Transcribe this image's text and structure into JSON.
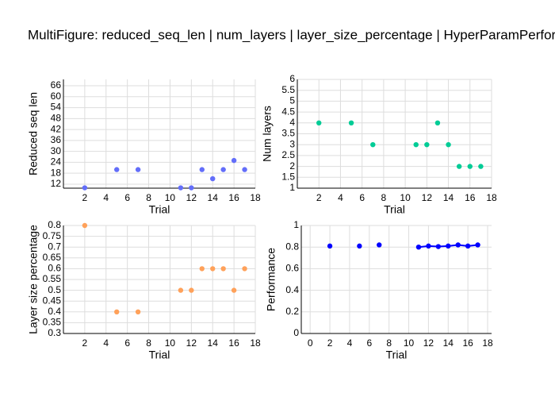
{
  "title": "MultiFigure: reduced_seq_len | num_layers | layer_size_percentage | HyperParamPerformance",
  "chart_data": [
    {
      "type": "scatter",
      "xlabel": "Trial",
      "ylabel": "Reduced seq len",
      "xlim": [
        0,
        18
      ],
      "xticks": [
        2,
        4,
        6,
        8,
        10,
        12,
        14,
        16,
        18
      ],
      "ylim": [
        9.8,
        69.5
      ],
      "yticks": [
        12,
        18,
        24,
        30,
        36,
        42,
        48,
        54,
        60,
        66
      ],
      "grid": true,
      "series": [
        {
          "mode": "markers",
          "color": "#636efa",
          "x": [
            2,
            5,
            7,
            11,
            12,
            13,
            14,
            15,
            16,
            17
          ],
          "values": [
            10,
            20,
            20,
            10,
            10,
            20,
            15,
            20,
            25,
            20
          ]
        }
      ]
    },
    {
      "type": "scatter",
      "xlabel": "Trial",
      "ylabel": "Num layers",
      "xlim": [
        0,
        18
      ],
      "xticks": [
        2,
        4,
        6,
        8,
        10,
        12,
        14,
        16,
        18
      ],
      "ylim": [
        1,
        6
      ],
      "yticks": [
        1,
        1.5,
        2,
        2.5,
        3,
        3.5,
        4,
        4.5,
        5,
        5.5,
        6
      ],
      "grid": true,
      "series": [
        {
          "mode": "markers",
          "color": "#00cc96",
          "x": [
            2,
            5,
            7,
            11,
            12,
            13,
            14,
            15,
            16,
            17
          ],
          "values": [
            4,
            4,
            3,
            3,
            3,
            4,
            3,
            2,
            2,
            2
          ]
        }
      ]
    },
    {
      "type": "scatter",
      "xlabel": "Trial",
      "ylabel": "Layer size percentage",
      "xlim": [
        0,
        18
      ],
      "xticks": [
        2,
        4,
        6,
        8,
        10,
        12,
        14,
        16,
        18
      ],
      "ylim": [
        0.3,
        0.8
      ],
      "yticks": [
        0.3,
        0.35,
        0.4,
        0.45,
        0.5,
        0.55,
        0.6,
        0.65,
        0.7,
        0.75,
        0.8
      ],
      "grid": true,
      "series": [
        {
          "mode": "markers",
          "color": "#ffa15a",
          "x": [
            2,
            5,
            7,
            11,
            12,
            13,
            14,
            15,
            16,
            17
          ],
          "values": [
            0.8,
            0.4,
            0.4,
            0.5,
            0.5,
            0.6,
            0.6,
            0.6,
            0.5,
            0.6
          ]
        }
      ]
    },
    {
      "type": "scatter",
      "xlabel": "Trial",
      "ylabel": "Performance",
      "xlim": [
        -0.9,
        18.4
      ],
      "xticks": [
        0,
        2,
        4,
        6,
        8,
        10,
        12,
        14,
        16,
        18
      ],
      "ylim": [
        0,
        1
      ],
      "yticks": [
        0,
        0.2,
        0.4,
        0.6,
        0.8,
        1
      ],
      "grid": true,
      "series": [
        {
          "mode": "markers",
          "color": "#0000ff",
          "x": [
            2,
            5,
            7
          ],
          "values": [
            0.81,
            0.81,
            0.82
          ]
        },
        {
          "mode": "lines+markers",
          "color": "#0000ff",
          "x": [
            11,
            12,
            13,
            14,
            15,
            16,
            17
          ],
          "values": [
            0.8,
            0.81,
            0.805,
            0.81,
            0.82,
            0.81,
            0.82
          ]
        }
      ]
    }
  ]
}
